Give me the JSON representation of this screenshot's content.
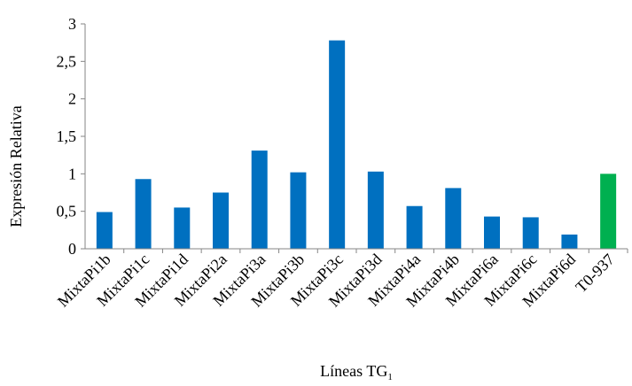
{
  "chart_data": {
    "type": "bar",
    "categories": [
      "MixtaPi1b",
      "MixtaPi1c",
      "MixtaPi1d",
      "MixtaPi2a",
      "MixtaPi3a",
      "MixtaPi3b",
      "MixtaPi3c",
      "MixtaPi3d",
      "MixtaPi4a",
      "MixtaPi4b",
      "MixtaPi6a",
      "MixtaPi6c",
      "MixtaPi6d",
      "T0-937"
    ],
    "values": [
      0.49,
      0.93,
      0.55,
      0.75,
      1.31,
      1.02,
      2.78,
      1.03,
      0.57,
      0.81,
      0.43,
      0.42,
      0.19,
      1.0
    ],
    "colors": [
      "#0070c0",
      "#0070c0",
      "#0070c0",
      "#0070c0",
      "#0070c0",
      "#0070c0",
      "#0070c0",
      "#0070c0",
      "#0070c0",
      "#0070c0",
      "#0070c0",
      "#0070c0",
      "#0070c0",
      "#00b050"
    ],
    "ylabel": "Expresión Relativa",
    "xlabel": "Líneas TG",
    "xlabel_subscript": "1",
    "ylim": [
      0,
      3
    ],
    "yticks": [
      "0",
      "0,5",
      "1",
      "1,5",
      "2",
      "2,5",
      "3"
    ],
    "grid": false,
    "legend": "none"
  }
}
